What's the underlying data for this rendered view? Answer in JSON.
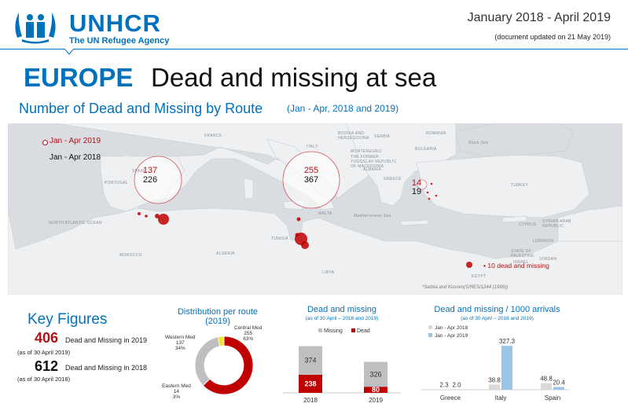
{
  "header": {
    "logo_name": "UNHCR",
    "logo_tagline": "The UN Refugee Agency",
    "period": "January 2018 - April 2019",
    "updated": "(document updated on 21 May 2019)"
  },
  "title": {
    "region": "EUROPE",
    "rest": "Dead and missing at sea"
  },
  "map_section": {
    "heading": "Number of Dead and Missing by Route",
    "note": "(Jan - Apr, 2018 and 2019)",
    "legend_2019": "Jan - Apr 2019",
    "legend_2018": "Jan - Apr 2018",
    "routes": {
      "western": {
        "v2019": "137",
        "v2018": "226"
      },
      "central": {
        "v2019": "255",
        "v2018": "367"
      },
      "eastern": {
        "v2019": "14",
        "v2018": "19"
      }
    },
    "egypt_note": "10 dead and missing",
    "disclaimer": "*Serbia and Kosovo(S/RES/1244 (1999))",
    "place_labels": {
      "france": "FRANCE",
      "portugal": "PORTUGAL",
      "spain": "SPAIN",
      "italy": "ITALY",
      "bosnia": "BOSNIA AND HERZEGOVINA",
      "serbia": "SERBIA",
      "romania": "ROMANIA",
      "bulgaria": "BULGARIA",
      "montenegro": "MONTENEGRO",
      "fyrom": "THE FORMER YUGOSLAV REPUBLIC OF MACEDONIA",
      "albania": "ALBANIA",
      "greece": "GREECE",
      "turkey": "TURKEY",
      "black_sea": "Black Sea",
      "atlantic": "NORTH ATLANTIC OCEAN",
      "morocco": "MOROCCO",
      "algeria": "ALGERIA",
      "tunisia": "TUNISIA",
      "malta": "MALTA",
      "med_sea": "Mediterranean Sea",
      "libya": "LIBYA",
      "egypt": "EGYPT",
      "cyprus": "CYPRUS",
      "syria": "SYRIAN ARAB REPUBLIC",
      "lebanon": "LEBANON",
      "palestine": "STATE OF PALESTINE",
      "israel": "ISRAEL",
      "jordan": "JORDAN"
    }
  },
  "key_figures": {
    "heading": "Key Figures",
    "fig_2019": {
      "value": "406",
      "text": "Dead and Missing in 2019",
      "asof": "(as of 30 April 2019)"
    },
    "fig_2018": {
      "value": "612",
      "text": "Dead and Missing in 2018",
      "asof": "(as of 30 April 2018)"
    }
  },
  "colors": {
    "brand_blue": "#0072bc",
    "dead_red": "#c00000",
    "missing_grey": "#bfbfbf",
    "eastern_yellow": "#f2e33a",
    "light_blue": "#9dc3e6"
  },
  "chart_data": [
    {
      "type": "pie",
      "title": "Distribution per route (2019)",
      "slices": [
        {
          "name": "Western Med",
          "value": 137,
          "label": "Western Med\n137\n34%",
          "color": "#bfbfbf"
        },
        {
          "name": "Eastern Med",
          "value": 14,
          "label": "Eastern Med\n14\n3%",
          "color": "#f2e33a"
        },
        {
          "name": "Central Med",
          "value": 255,
          "label": "Central Med\n255\n63%",
          "color": "#c00000"
        }
      ]
    },
    {
      "type": "bar",
      "title": "Dead and missing",
      "subtitle": "(as of 30 April – 2018 and 2019)",
      "stacked": true,
      "categories": [
        "2018",
        "2019"
      ],
      "series": [
        {
          "name": "Dead",
          "values": [
            238,
            80
          ],
          "color": "#c00000"
        },
        {
          "name": "Missing",
          "values": [
            374,
            326
          ],
          "color": "#bfbfbf"
        }
      ],
      "legend": [
        "Missing",
        "Dead"
      ]
    },
    {
      "type": "bar",
      "title": "Dead and missing / 1000 arrivals",
      "subtitle": "(as of 30 April – 2018 and 2019)",
      "categories": [
        "Greece",
        "Italy",
        "Spain"
      ],
      "series": [
        {
          "name": "Jan - Apr 2018",
          "values": [
            2.3,
            38.8,
            48.8
          ],
          "labels": [
            "2.3",
            "38.8",
            "48.8"
          ],
          "color": "#d9d9d9"
        },
        {
          "name": "Jan - Apr 2019",
          "values": [
            2.0,
            327.3,
            20.4
          ],
          "labels": [
            "2.0",
            "327.3",
            "20.4"
          ],
          "color": "#9dc3e6"
        }
      ]
    }
  ]
}
